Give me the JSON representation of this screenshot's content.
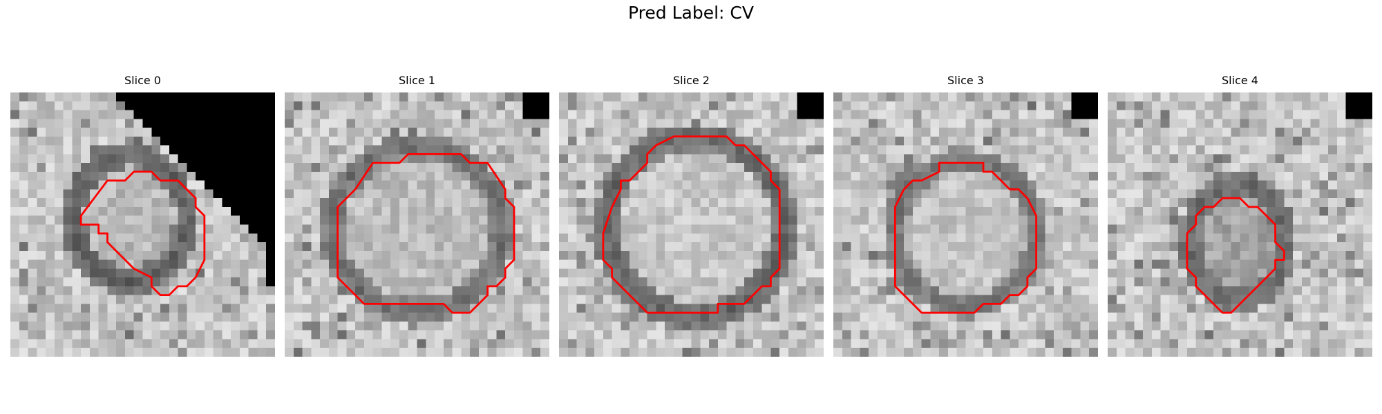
{
  "figure": {
    "title": "Pred Label: CV"
  },
  "slices": [
    {
      "title": "Slice 0"
    },
    {
      "title": "Slice 1"
    },
    {
      "title": "Slice 2"
    },
    {
      "title": "Slice 3"
    },
    {
      "title": "Slice 4"
    }
  ],
  "colors": {
    "background": "#ffffff",
    "contour": "#ff0000",
    "masked_region": "#000000"
  }
}
